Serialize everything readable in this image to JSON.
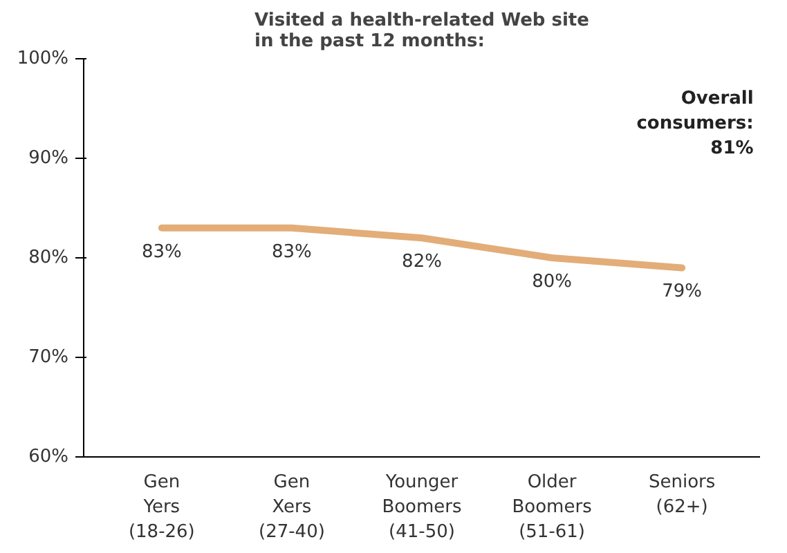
{
  "chart_data": {
    "type": "line",
    "title": "Visited a health-related Web site\nin the past 12 months:",
    "categories": [
      "Gen\nYers\n(18-26)",
      "Gen\nXers\n(27-40)",
      "Younger\nBoomers\n(41-50)",
      "Older\nBoomers\n(51-61)",
      "Seniors\n(62+)"
    ],
    "series": [
      {
        "color": "#e2ad78",
        "values": [
          83,
          83,
          82,
          80,
          79
        ]
      }
    ],
    "value_labels": [
      "83%",
      "83%",
      "82%",
      "80%",
      "79%"
    ],
    "ylim": [
      60,
      100
    ],
    "yticks": [
      {
        "value": 60,
        "label": "60%"
      },
      {
        "value": 70,
        "label": "70%"
      },
      {
        "value": 80,
        "label": "80%"
      },
      {
        "value": 90,
        "label": "90%"
      },
      {
        "value": 100,
        "label": "100%"
      }
    ],
    "annotations": [
      "Overall\nconsumers:\n81%"
    ],
    "grid": false,
    "marker": "none",
    "line_style": "solid"
  }
}
